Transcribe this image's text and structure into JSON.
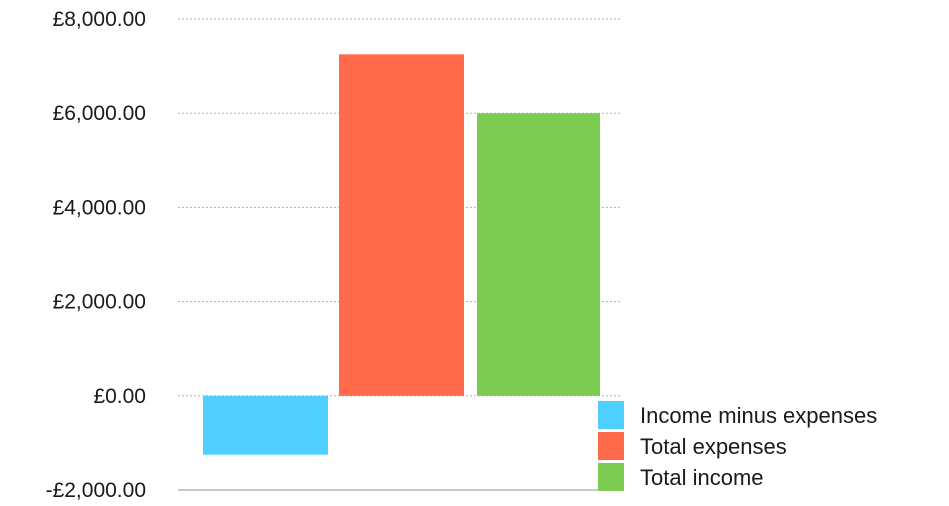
{
  "chart_data": {
    "type": "bar",
    "title": "",
    "xlabel": "",
    "ylabel": "",
    "ylim": [
      -2000,
      8000
    ],
    "yticks": [
      -2000,
      0,
      2000,
      4000,
      6000,
      8000
    ],
    "ytick_labels": [
      "-£2,000.00",
      "£0.00",
      "£2,000.00",
      "£4,000.00",
      "£6,000.00",
      "£8,000.00"
    ],
    "grid": true,
    "legend_placement": "bottom-right",
    "series": [
      {
        "name": "Income minus expenses",
        "value": -1250,
        "color": "#4FCFFF"
      },
      {
        "name": "Total expenses",
        "value": 7250,
        "color": "#FF6A4A"
      },
      {
        "name": "Total income",
        "value": 6000,
        "color": "#7ACB50"
      }
    ]
  }
}
